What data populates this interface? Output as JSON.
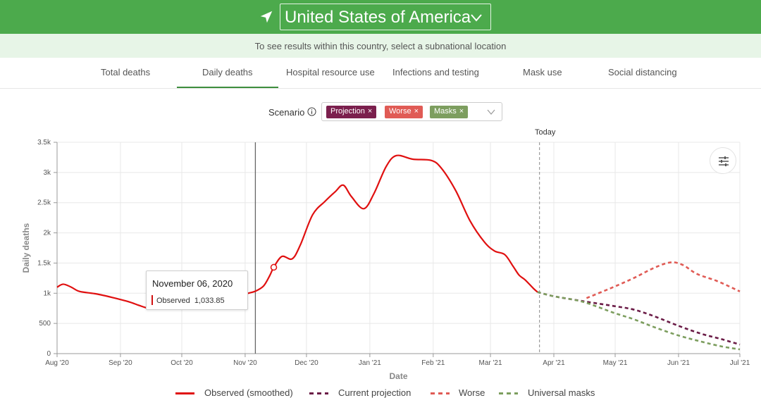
{
  "header": {
    "location_icon": "navigation-arrow-icon",
    "country": "United States of America",
    "dropdown_icon": "chevron-down-icon",
    "subnational_hint": "To see results within this country, select a subnational location"
  },
  "tabs": [
    {
      "label": "Total deaths",
      "active": false
    },
    {
      "label": "Daily deaths",
      "active": true
    },
    {
      "label": "Hospital resource use",
      "active": false
    },
    {
      "label": "Infections and testing",
      "active": false
    },
    {
      "label": "Mask use",
      "active": false
    },
    {
      "label": "Social distancing",
      "active": false
    }
  ],
  "scenario": {
    "label": "Scenario",
    "info_icon": "info-icon",
    "chips": [
      {
        "label": "Projection",
        "color": "#7b1f4d"
      },
      {
        "label": "Worse",
        "color": "#e05b55"
      },
      {
        "label": "Masks",
        "color": "#7d9e5f"
      }
    ],
    "remove_glyph": "×",
    "dropdown_icon": "chevron-down-icon"
  },
  "today_label": "Today",
  "filter_icon": "sliders-icon",
  "tooltip": {
    "date": "November 06, 2020",
    "series": "Observed",
    "value": "1,033.85"
  },
  "legend": [
    {
      "label": "Observed (smoothed)",
      "color": "#e01010",
      "style": "solid"
    },
    {
      "label": "Current projection",
      "color": "#6b1c47",
      "style": "dashed"
    },
    {
      "label": "Worse",
      "color": "#e05b55",
      "style": "dashed"
    },
    {
      "label": "Universal masks",
      "color": "#7d9e5f",
      "style": "dashed"
    }
  ],
  "chart_data": {
    "type": "line",
    "xlabel": "Date",
    "ylabel": "Daily deaths",
    "ylim": [
      0,
      3500
    ],
    "y_ticks": [
      0,
      500,
      1000,
      1500,
      2000,
      2500,
      3000,
      3500
    ],
    "y_tick_labels": [
      "0",
      "500",
      "1k",
      "1.5k",
      "2k",
      "2.5k",
      "3k",
      "3.5k"
    ],
    "x_ticks": [
      "2020-08-01",
      "2020-09-01",
      "2020-10-01",
      "2020-11-01",
      "2020-12-01",
      "2021-01-01",
      "2021-02-01",
      "2021-03-01",
      "2021-04-01",
      "2021-05-01",
      "2021-06-01",
      "2021-07-01"
    ],
    "x_tick_labels": [
      "Aug '20",
      "Sep '20",
      "Oct '20",
      "Nov '20",
      "Dec '20",
      "Jan '21",
      "Feb '21",
      "Mar '21",
      "Apr '21",
      "May '21",
      "Jun '21",
      "Jul '21"
    ],
    "xlim": [
      "2020-08-01",
      "2021-07-01"
    ],
    "today": "2021-03-25",
    "hover_date": "2020-11-06",
    "highlight_point": {
      "x": "2020-11-15",
      "y": 1430
    },
    "grid": true,
    "series": [
      {
        "name": "Observed (smoothed)",
        "color": "#e01010",
        "style": "solid",
        "points": [
          [
            "2020-08-01",
            1100
          ],
          [
            "2020-08-04",
            1150
          ],
          [
            "2020-08-08",
            1100
          ],
          [
            "2020-08-12",
            1030
          ],
          [
            "2020-08-20",
            990
          ],
          [
            "2020-08-28",
            930
          ],
          [
            "2020-09-05",
            860
          ],
          [
            "2020-09-10",
            800
          ],
          [
            "2020-09-15",
            750
          ],
          [
            "2020-09-22",
            740
          ],
          [
            "2020-10-01",
            760
          ],
          [
            "2020-10-10",
            760
          ],
          [
            "2020-10-20",
            780
          ],
          [
            "2020-10-27",
            850
          ],
          [
            "2020-11-01",
            980
          ],
          [
            "2020-11-06",
            1034
          ],
          [
            "2020-11-10",
            1120
          ],
          [
            "2020-11-13",
            1290
          ],
          [
            "2020-11-15",
            1430
          ],
          [
            "2020-11-19",
            1610
          ],
          [
            "2020-11-24",
            1570
          ],
          [
            "2020-11-28",
            1800
          ],
          [
            "2020-12-04",
            2300
          ],
          [
            "2020-12-10",
            2520
          ],
          [
            "2020-12-15",
            2680
          ],
          [
            "2020-12-19",
            2790
          ],
          [
            "2020-12-23",
            2600
          ],
          [
            "2020-12-29",
            2400
          ],
          [
            "2021-01-03",
            2650
          ],
          [
            "2021-01-09",
            3100
          ],
          [
            "2021-01-14",
            3280
          ],
          [
            "2021-01-22",
            3220
          ],
          [
            "2021-01-31",
            3200
          ],
          [
            "2021-02-05",
            3070
          ],
          [
            "2021-02-12",
            2700
          ],
          [
            "2021-02-19",
            2200
          ],
          [
            "2021-02-26",
            1850
          ],
          [
            "2021-03-03",
            1700
          ],
          [
            "2021-03-08",
            1640
          ],
          [
            "2021-03-12",
            1450
          ],
          [
            "2021-03-15",
            1300
          ],
          [
            "2021-03-18",
            1220
          ],
          [
            "2021-03-22",
            1080
          ],
          [
            "2021-03-24",
            1020
          ]
        ]
      },
      {
        "name": "Current projection",
        "color": "#6b1c47",
        "style": "dashed",
        "points": [
          [
            "2021-03-24",
            1020
          ],
          [
            "2021-04-01",
            950
          ],
          [
            "2021-04-15",
            870
          ],
          [
            "2021-04-30",
            790
          ],
          [
            "2021-05-10",
            730
          ],
          [
            "2021-05-20",
            620
          ],
          [
            "2021-06-01",
            460
          ],
          [
            "2021-06-12",
            330
          ],
          [
            "2021-06-22",
            240
          ],
          [
            "2021-07-01",
            150
          ]
        ]
      },
      {
        "name": "Worse",
        "color": "#e05b55",
        "style": "dashed",
        "points": [
          [
            "2021-04-17",
            920
          ],
          [
            "2021-04-30",
            1100
          ],
          [
            "2021-05-10",
            1250
          ],
          [
            "2021-05-20",
            1420
          ],
          [
            "2021-05-28",
            1510
          ],
          [
            "2021-06-03",
            1470
          ],
          [
            "2021-06-10",
            1320
          ],
          [
            "2021-06-20",
            1200
          ],
          [
            "2021-07-01",
            1030
          ]
        ]
      },
      {
        "name": "Universal masks",
        "color": "#7d9e5f",
        "style": "dashed",
        "points": [
          [
            "2021-03-24",
            1020
          ],
          [
            "2021-04-01",
            950
          ],
          [
            "2021-04-15",
            860
          ],
          [
            "2021-04-30",
            680
          ],
          [
            "2021-05-10",
            570
          ],
          [
            "2021-05-20",
            440
          ],
          [
            "2021-06-01",
            300
          ],
          [
            "2021-06-12",
            200
          ],
          [
            "2021-06-22",
            120
          ],
          [
            "2021-07-01",
            70
          ]
        ]
      }
    ]
  }
}
